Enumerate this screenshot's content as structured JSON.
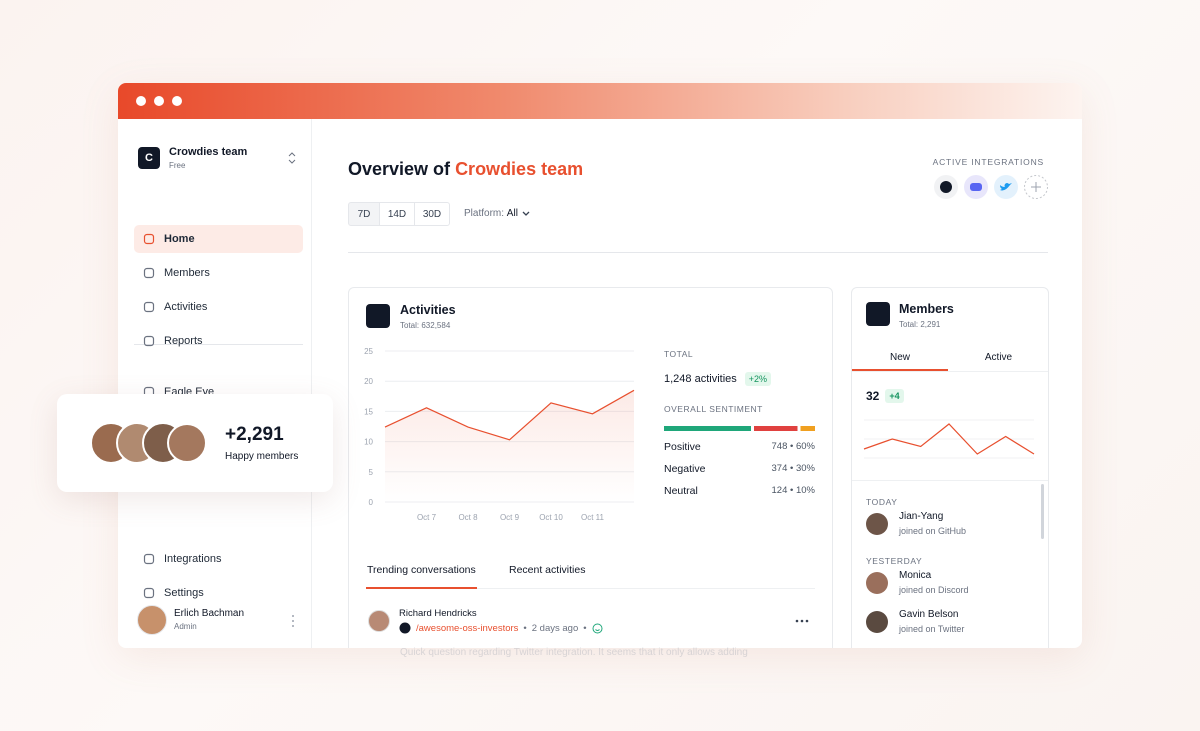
{
  "sidebar": {
    "team": {
      "initial": "C",
      "name": "Crowdies team",
      "plan": "Free"
    },
    "nav": [
      {
        "label": "Home",
        "active": true
      },
      {
        "label": "Members",
        "active": false
      },
      {
        "label": "Activities",
        "active": false
      },
      {
        "label": "Reports",
        "active": false
      },
      {
        "label": "Eagle Eye",
        "active": false
      },
      {
        "label": "Integrations",
        "active": false
      },
      {
        "label": "Settings",
        "active": false
      }
    ],
    "user": {
      "name": "Erlich Bachman",
      "role": "Admin"
    }
  },
  "floating_card": {
    "count": "+2,291",
    "label": "Happy members"
  },
  "header": {
    "title": "Overview of",
    "title_highlight": "Crowdies team",
    "ranges": [
      "7D",
      "14D",
      "30D"
    ],
    "platform_label": "Platform:",
    "platform_value": "All",
    "integrations_label": "ACTIVE INTEGRATIONS"
  },
  "activities": {
    "title": "Activities",
    "total": "Total: 632,584",
    "stats": {
      "total_label": "TOTAL",
      "total_value": "1,248 activities",
      "change": "+2%",
      "sentiment_label": "OVERALL SENTIMENT",
      "sentiment": [
        {
          "name": "Positive",
          "percent": 60,
          "label": "748 • 60%",
          "color": "#1fa77a"
        },
        {
          "name": "Negative",
          "percent": 30,
          "label": "374 • 30%",
          "color": "#e0413f"
        },
        {
          "name": "Neutral",
          "percent": 10,
          "label": "124 • 10%",
          "color": "#f0a020"
        }
      ]
    },
    "tabs": [
      "Trending conversations",
      "Recent activities"
    ],
    "conversation": {
      "author": "Richard Hendricks",
      "channel": "/awesome-oss-investors",
      "time": "2 days ago",
      "excerpt": "Quick question regarding Twitter integration. It seems that it only allows adding"
    }
  },
  "members": {
    "title": "Members",
    "total": "Total: 2,291",
    "tabs": [
      "New",
      "Active"
    ],
    "count": "32",
    "change": "+4",
    "groups": [
      {
        "label": "TODAY",
        "items": [
          {
            "name": "Jian-Yang",
            "detail": "joined on GitHub"
          }
        ]
      },
      {
        "label": "YESTERDAY",
        "items": [
          {
            "name": "Monica",
            "detail": "joined on Discord"
          },
          {
            "name": "Gavin Belson",
            "detail": "joined on Twitter"
          }
        ]
      }
    ]
  },
  "chart_data": [
    {
      "type": "line",
      "categories": [
        null,
        "Oct 7",
        "Oct 8",
        "Oct 9",
        "Oct 10",
        "Oct 11",
        null
      ],
      "values": [
        12.4,
        15.6,
        12.4,
        10.3,
        16.4,
        14.6,
        18.5
      ],
      "color": "#e8502f",
      "ylim": [
        0,
        25
      ],
      "yticks": [
        0,
        5,
        10,
        15,
        20,
        25
      ],
      "grid": true
    },
    {
      "type": "line",
      "values": [
        3,
        5,
        3.5,
        8,
        2,
        5.5,
        2
      ],
      "color": "#e8502f"
    }
  ]
}
